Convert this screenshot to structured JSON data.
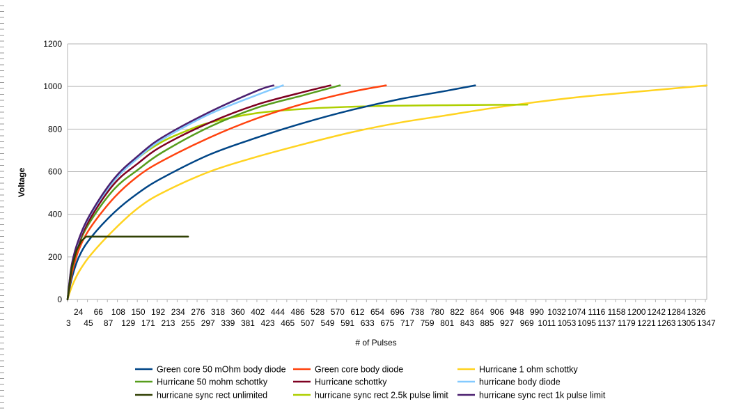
{
  "chart_data": {
    "type": "line",
    "title": "",
    "xlabel": "# of Pulses",
    "ylabel": "Voltage",
    "xlim": [
      1,
      1348
    ],
    "ylim": [
      0,
      1200
    ],
    "y_ticks": [
      "0",
      "200",
      "400",
      "600",
      "800",
      "1000",
      "1200"
    ],
    "x_tick_labels_row1": [
      "24",
      "66",
      "108",
      "150",
      "192",
      "234",
      "276",
      "318",
      "360",
      "402",
      "444",
      "486",
      "528",
      "570",
      "612",
      "654",
      "696",
      "738",
      "780",
      "822",
      "864",
      "906",
      "948",
      "990",
      "1032",
      "1074",
      "1116",
      "1158",
      "1200",
      "1242",
      "1284",
      "1326"
    ],
    "x_tick_labels_row2": [
      "3",
      "45",
      "87",
      "129",
      "171",
      "213",
      "255",
      "297",
      "339",
      "381",
      "423",
      "465",
      "507",
      "549",
      "591",
      "633",
      "675",
      "717",
      "759",
      "801",
      "843",
      "885",
      "927",
      "969",
      "1011",
      "1053",
      "1095",
      "1137",
      "1179",
      "1221",
      "1263",
      "1305",
      "1347"
    ],
    "grid": "horizontal",
    "legend_position": "bottom",
    "series": [
      {
        "name": "Green core 50 mOhm body diode",
        "color": "#004586",
        "x": [
          1,
          10,
          25,
          50,
          100,
          150,
          200,
          300,
          400,
          500,
          600,
          700,
          800,
          860
        ],
        "y": [
          0,
          100,
          200,
          290,
          410,
          500,
          570,
          680,
          760,
          830,
          890,
          940,
          980,
          1005
        ]
      },
      {
        "name": "Green core body diode",
        "color": "#ff420e",
        "x": [
          1,
          10,
          25,
          50,
          100,
          150,
          200,
          300,
          400,
          500,
          600,
          672
        ],
        "y": [
          0,
          120,
          235,
          340,
          480,
          580,
          650,
          760,
          850,
          920,
          975,
          1005
        ]
      },
      {
        "name": "Hurricane 1 ohm schottky",
        "color": "#ffd320",
        "x": [
          1,
          10,
          25,
          50,
          100,
          150,
          200,
          300,
          400,
          500,
          600,
          700,
          800,
          900,
          1000,
          1100,
          1200,
          1348
        ],
        "y": [
          0,
          60,
          130,
          210,
          330,
          430,
          500,
          600,
          670,
          730,
          785,
          830,
          865,
          900,
          930,
          955,
          975,
          1005
        ]
      },
      {
        "name": "Hurricane 50 mohm schottky",
        "color": "#579d1c",
        "x": [
          1,
          10,
          25,
          50,
          100,
          150,
          200,
          300,
          400,
          500,
          575
        ],
        "y": [
          0,
          140,
          260,
          370,
          520,
          610,
          690,
          810,
          900,
          960,
          1005
        ]
      },
      {
        "name": "Hurricane schottky",
        "color": "#7e0021",
        "x": [
          1,
          10,
          25,
          50,
          100,
          150,
          200,
          300,
          400,
          500,
          555
        ],
        "y": [
          0,
          150,
          270,
          385,
          545,
          640,
          720,
          830,
          915,
          975,
          1005
        ]
      },
      {
        "name": "hurricane body diode",
        "color": "#83caff",
        "x": [
          1,
          10,
          25,
          50,
          100,
          150,
          200,
          300,
          400,
          455
        ],
        "y": [
          0,
          160,
          280,
          400,
          560,
          665,
          750,
          870,
          960,
          1005
        ]
      },
      {
        "name": "hurricane sync rect unlimited",
        "color": "#314004",
        "x": [
          1,
          10,
          20,
          30,
          40,
          255
        ],
        "y": [
          0,
          150,
          230,
          275,
          295,
          295
        ]
      },
      {
        "name": "hurricane sync rect 2.5k pulse limit",
        "color": "#aecf00",
        "x": [
          1,
          10,
          25,
          50,
          100,
          150,
          200,
          250,
          300,
          400,
          500,
          600,
          700,
          800,
          900,
          970
        ],
        "y": [
          0,
          160,
          280,
          400,
          560,
          665,
          740,
          790,
          830,
          875,
          895,
          905,
          910,
          912,
          914,
          915
        ]
      },
      {
        "name": "hurricane sync rect 1k pulse limit",
        "color": "#4b1f6f",
        "x": [
          1,
          10,
          25,
          50,
          100,
          150,
          200,
          300,
          400,
          435
        ],
        "y": [
          0,
          165,
          285,
          405,
          570,
          675,
          760,
          880,
          980,
          1005
        ]
      }
    ]
  }
}
